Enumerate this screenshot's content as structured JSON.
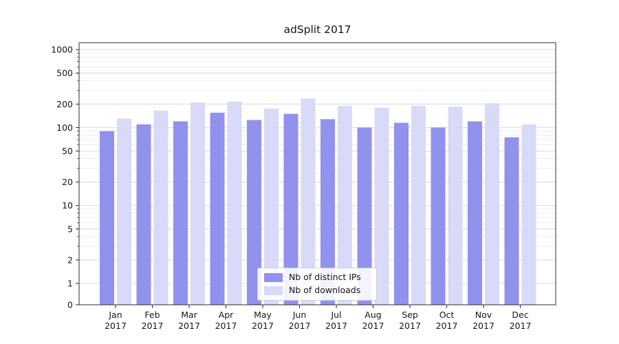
{
  "chart_data": {
    "type": "bar",
    "title": "adSplit 2017",
    "categories": [
      "Jan",
      "Feb",
      "Mar",
      "Apr",
      "May",
      "Jun",
      "Jul",
      "Aug",
      "Sep",
      "Oct",
      "Nov",
      "Dec"
    ],
    "x_year": "2017",
    "series": [
      {
        "name": "Nb of distinct IPs",
        "color": "#9191ee",
        "values": [
          90,
          110,
          120,
          155,
          125,
          150,
          128,
          100,
          115,
          100,
          120,
          75
        ]
      },
      {
        "name": "Nb of downloads",
        "color": "#d9d9f8",
        "values": [
          130,
          165,
          210,
          215,
          175,
          235,
          190,
          180,
          190,
          185,
          205,
          110
        ]
      }
    ],
    "yscale": "log",
    "ytick_values": [
      0,
      1,
      2,
      5,
      10,
      20,
      50,
      100,
      200,
      500,
      1000
    ],
    "ytick_labels": [
      "0",
      "1",
      "2",
      "5",
      "10",
      "20",
      "50",
      "100",
      "200",
      "500",
      "1000"
    ],
    "ylim": [
      0,
      1100
    ],
    "grid": "horizontal",
    "legend_position": "lower center"
  },
  "colors": {
    "major_grid": "#d9d9d9",
    "minor_grid": "#ededed",
    "spine": "#2b2b2b",
    "tick_text": "#151515"
  }
}
